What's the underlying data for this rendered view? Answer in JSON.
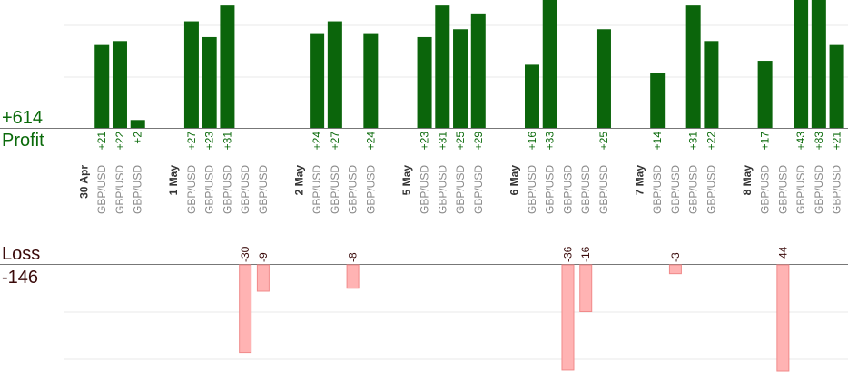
{
  "summary": {
    "profit_total": "+614",
    "profit_label": "Profit",
    "loss_label": "Loss",
    "loss_total": "-146"
  },
  "colors": {
    "profit_bar": "#0b650b",
    "profit_text": "#0a6a0a",
    "loss_bar": "#ffb3b3",
    "loss_stroke": "#f08a8a",
    "loss_text": "#3a0a0a",
    "category_text": "#888888",
    "date_text": "#333333"
  },
  "chart_data": {
    "type": "bar",
    "grid": true,
    "profit_axis_max": 50,
    "loss_axis_min": -40,
    "columns": [
      {
        "date": "30 Apr"
      },
      {
        "category": "GBP/USD",
        "value": 21
      },
      {
        "category": "GBP/USD",
        "value": 22
      },
      {
        "category": "GBP/USD",
        "value": 2
      },
      {
        "spacer": true
      },
      {
        "date": "1 May"
      },
      {
        "category": "GBP/USD",
        "value": 27
      },
      {
        "category": "GBP/USD",
        "value": 23
      },
      {
        "category": "GBP/USD",
        "value": 31
      },
      {
        "category": "GBP/USD",
        "value": -30
      },
      {
        "category": "GBP/USD",
        "value": -9
      },
      {
        "spacer": true
      },
      {
        "date": "2 May"
      },
      {
        "category": "GBP/USD",
        "value": 24
      },
      {
        "category": "GBP/USD",
        "value": 27
      },
      {
        "category": "GBP/USD",
        "value": -8
      },
      {
        "category": "GBP/USD",
        "value": 24
      },
      {
        "spacer": true
      },
      {
        "date": "5 May"
      },
      {
        "category": "GBP/USD",
        "value": 23
      },
      {
        "category": "GBP/USD",
        "value": 31
      },
      {
        "category": "GBP/USD",
        "value": 25
      },
      {
        "category": "GBP/USD",
        "value": 29
      },
      {
        "spacer": true
      },
      {
        "date": "6 May"
      },
      {
        "category": "GBP/USD",
        "value": 16
      },
      {
        "category": "GBP/USD",
        "value": 33
      },
      {
        "category": "GBP/USD",
        "value": -36
      },
      {
        "category": "GBP/USD",
        "value": -16
      },
      {
        "category": "GBP/USD",
        "value": 25
      },
      {
        "spacer": true
      },
      {
        "date": "7 May"
      },
      {
        "category": "GBP/USD",
        "value": 14
      },
      {
        "category": "GBP/USD",
        "value": -3
      },
      {
        "category": "GBP/USD",
        "value": 31
      },
      {
        "category": "GBP/USD",
        "value": 22
      },
      {
        "spacer": true
      },
      {
        "date": "8 May"
      },
      {
        "category": "GBP/USD",
        "value": 17
      },
      {
        "category": "GBP/USD",
        "value": -44
      },
      {
        "category": "GBP/USD",
        "value": 43
      },
      {
        "category": "GBP/USD",
        "value": 83
      },
      {
        "category": "GBP/USD",
        "value": 21
      }
    ]
  }
}
